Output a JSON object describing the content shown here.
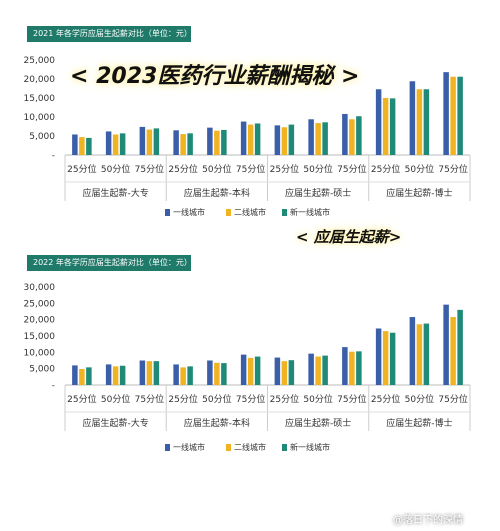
{
  "banner": "< 2023医药行业薪酬揭秘 >",
  "banner2": "< 应届生起薪>",
  "footer": "@落日下的深情",
  "colors": {
    "first_tier": "#3b5ea8",
    "second_tier": "#f0b323",
    "new_first_tier": "#1f8a78",
    "header_bg": "#1f7a6a"
  },
  "chart_data": [
    {
      "type": "bar",
      "title": "2021 年各学历应届生起薪对比（单位：元）",
      "groups": [
        "应届生起薪-大专",
        "应届生起薪-本科",
        "应届生起薪-硕士",
        "应届生起薪-博士"
      ],
      "categories": [
        "25分位",
        "50分位",
        "75分位",
        "25分位",
        "50分位",
        "75分位",
        "25分位",
        "50分位",
        "75分位",
        "25分位",
        "50分位",
        "75分位"
      ],
      "ylim": [
        0,
        25000
      ],
      "yticks": [
        "-",
        "5,000",
        "10,000",
        "15,000",
        "20,000",
        "25,000"
      ],
      "legend_position": "bottom",
      "series": [
        {
          "name": "一线城市",
          "values": [
            5400,
            6200,
            7400,
            6500,
            7200,
            8800,
            7800,
            9400,
            10800,
            17300,
            19400,
            21800
          ]
        },
        {
          "name": "二线城市",
          "values": [
            4700,
            5400,
            6700,
            5500,
            6400,
            8000,
            7300,
            8400,
            9400,
            15000,
            17300,
            20600
          ]
        },
        {
          "name": "新一线城市",
          "values": [
            4500,
            5700,
            7000,
            5700,
            6600,
            8300,
            8000,
            8600,
            10200,
            14900,
            17300,
            20600
          ]
        }
      ]
    },
    {
      "type": "bar",
      "title": "2022 年各学历应届生起薪对比（单位：元）",
      "groups": [
        "应届生起薪-大专",
        "应届生起薪-本科",
        "应届生起薪-硕士",
        "应届生起薪-博士"
      ],
      "categories": [
        "25分位",
        "50分位",
        "75分位",
        "25分位",
        "50分位",
        "75分位",
        "25分位",
        "50分位",
        "75分位",
        "25分位",
        "50分位",
        "75分位"
      ],
      "ylim": [
        0,
        30000
      ],
      "yticks": [
        "-",
        "5,000",
        "10,000",
        "15,000",
        "20,000",
        "25,000",
        "30,000"
      ],
      "legend_position": "bottom",
      "series": [
        {
          "name": "一线城市",
          "values": [
            6000,
            6300,
            7500,
            6300,
            7500,
            9300,
            8400,
            9600,
            11600,
            17300,
            20800,
            24600
          ]
        },
        {
          "name": "二线城市",
          "values": [
            4900,
            5700,
            7300,
            5400,
            6800,
            8300,
            7300,
            8700,
            10200,
            16500,
            18600,
            20800
          ]
        },
        {
          "name": "新一线城市",
          "values": [
            5400,
            5900,
            7300,
            5700,
            6700,
            8700,
            7600,
            9000,
            10300,
            16000,
            18800,
            23000
          ]
        }
      ]
    }
  ]
}
